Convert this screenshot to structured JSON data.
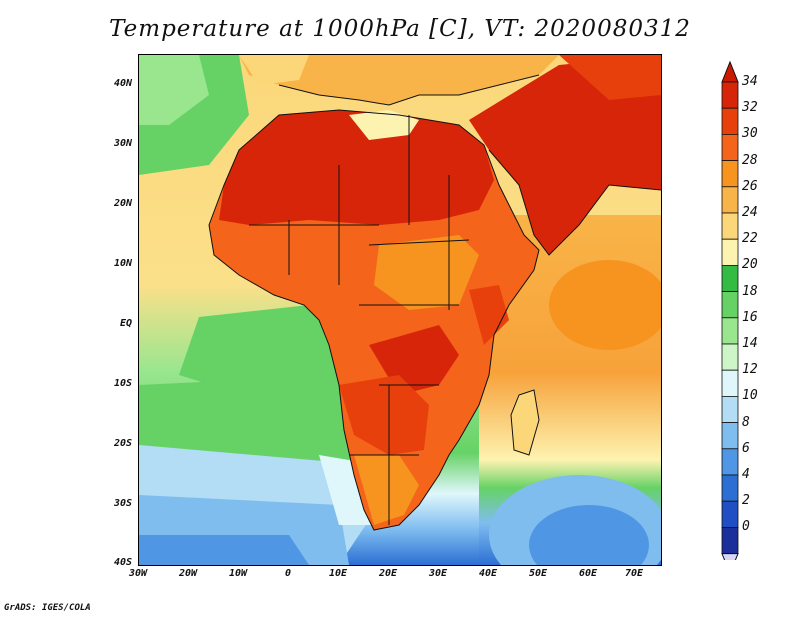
{
  "title": "Temperature at 1000hPa [C], VT: 2020080312",
  "credit": "GrADS: IGES/COLA",
  "lat_labels": [
    "40N",
    "30N",
    "20N",
    "10N",
    "EQ",
    "10S",
    "20S",
    "30S",
    "40S"
  ],
  "lon_labels": [
    "30W",
    "20W",
    "10W",
    "0",
    "10E",
    "20E",
    "30E",
    "40E",
    "50E",
    "60E",
    "70E"
  ],
  "colorbar": {
    "labels": [
      "34",
      "32",
      "30",
      "28",
      "26",
      "24",
      "22",
      "20",
      "18",
      "16",
      "14",
      "12",
      "10",
      "8",
      "6",
      "4",
      "2",
      "0"
    ],
    "colors": [
      "#d7250a",
      "#e8400d",
      "#f4641a",
      "#f7931f",
      "#f8b448",
      "#fbd77a",
      "#fdf3b0",
      "#33bb44",
      "#66d266",
      "#99e68f",
      "#cdf5c8",
      "#dff7fb",
      "#b3dcf5",
      "#7fbdef",
      "#4f96e4",
      "#2c6fd4",
      "#1f4fc2",
      "#1b2f9a"
    ],
    "top_arrow_color": "#cc1a00",
    "bottom_arrow_color": "#d9d6f5"
  }
}
